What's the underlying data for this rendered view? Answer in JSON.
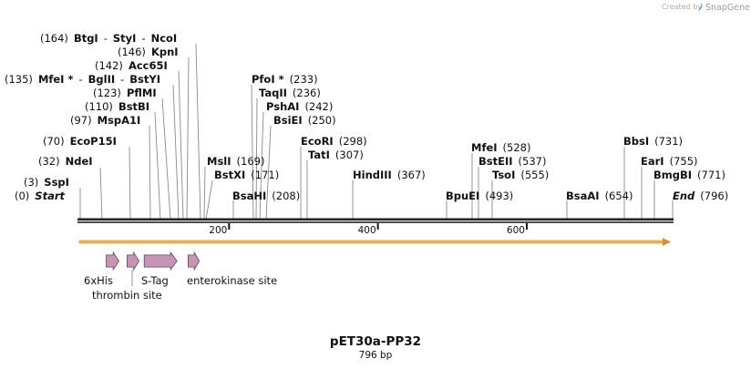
{
  "credit": {
    "prefix": "Created by",
    "brand": "SnapGene"
  },
  "plasmid": {
    "name": "pET30a-PP32",
    "length_label": "796 bp",
    "length": 796
  },
  "ruler": {
    "ticks": [
      {
        "label": "200",
        "pos": 200
      },
      {
        "label": "400",
        "pos": 400
      },
      {
        "label": "600",
        "pos": 600
      }
    ]
  },
  "site_groups": [
    {
      "text": [
        {
          "pos": "(164)"
        },
        {
          "enz": "BtgI"
        },
        {
          "sep": "-"
        },
        {
          "enz": "StyI"
        },
        {
          "sep": "-"
        },
        {
          "enz": "NcoI"
        }
      ]
    },
    {
      "text": [
        {
          "pos": "(146)"
        },
        {
          "enz": "KpnI"
        }
      ]
    },
    {
      "text": [
        {
          "pos": "(142)"
        },
        {
          "enz": "Acc65I"
        }
      ]
    },
    {
      "text": [
        {
          "pos": "(135)"
        },
        {
          "enz": "MfeI *"
        },
        {
          "sep": "-"
        },
        {
          "enz": "BglII"
        },
        {
          "sep": "-"
        },
        {
          "enz": "BstYI"
        }
      ]
    },
    {
      "text": [
        {
          "pos": "(123)"
        },
        {
          "enz": "PflMI"
        }
      ]
    },
    {
      "text": [
        {
          "pos": "(110)"
        },
        {
          "enz": "BstBI"
        }
      ]
    },
    {
      "text": [
        {
          "pos": "(97)"
        },
        {
          "enz": "MspA1I"
        }
      ]
    },
    {
      "text": [
        {
          "pos": "(70)"
        },
        {
          "enz": "EcoP15I"
        }
      ]
    },
    {
      "text": [
        {
          "pos": "(32)"
        },
        {
          "enz": "NdeI"
        }
      ]
    },
    {
      "text": [
        {
          "pos": "(3)"
        },
        {
          "enz": "SspI"
        }
      ]
    },
    {
      "text": [
        {
          "pos": "(0)"
        },
        {
          "ital": "Start"
        }
      ]
    },
    {
      "text": [
        {
          "enz": "PfoI *"
        },
        {
          "pos": "(233)"
        }
      ]
    },
    {
      "text": [
        {
          "enz": "TaqII"
        },
        {
          "pos": "(236)"
        }
      ]
    },
    {
      "text": [
        {
          "enz": "PshAI"
        },
        {
          "pos": "(242)"
        }
      ]
    },
    {
      "text": [
        {
          "enz": "BsiEI"
        },
        {
          "pos": "(250)"
        }
      ]
    },
    {
      "text": [
        {
          "enz": "MslI"
        },
        {
          "pos": "(169)"
        }
      ]
    },
    {
      "text": [
        {
          "enz": "BstXI"
        },
        {
          "pos": "(171)"
        }
      ]
    },
    {
      "text": [
        {
          "enz": "BsaHI"
        },
        {
          "pos": "(208)"
        }
      ]
    },
    {
      "text": [
        {
          "enz": "EcoRI"
        },
        {
          "pos": "(298)"
        }
      ]
    },
    {
      "text": [
        {
          "enz": "TatI"
        },
        {
          "pos": "(307)"
        }
      ]
    },
    {
      "text": [
        {
          "enz": "HindIII"
        },
        {
          "pos": "(367)"
        }
      ]
    },
    {
      "text": [
        {
          "enz": "MfeI"
        },
        {
          "pos": "(528)"
        }
      ]
    },
    {
      "text": [
        {
          "enz": "BstEII"
        },
        {
          "pos": "(537)"
        }
      ]
    },
    {
      "text": [
        {
          "enz": "TsoI"
        },
        {
          "pos": "(555)"
        }
      ]
    },
    {
      "text": [
        {
          "enz": "BpuEI"
        },
        {
          "pos": "(493)"
        }
      ]
    },
    {
      "text": [
        {
          "enz": "BsaAI"
        },
        {
          "pos": "(654)"
        }
      ]
    },
    {
      "text": [
        {
          "enz": "BbsI"
        },
        {
          "pos": "(731)"
        }
      ]
    },
    {
      "text": [
        {
          "enz": "EarI"
        },
        {
          "pos": "(755)"
        }
      ]
    },
    {
      "text": [
        {
          "enz": "BmgBI"
        },
        {
          "pos": "(771)"
        }
      ]
    },
    {
      "text": [
        {
          "ital": "End"
        },
        {
          "pos": "(796)"
        }
      ]
    }
  ],
  "features": [
    {
      "name": "6xHis",
      "start": 35,
      "end": 52
    },
    {
      "name": "thrombin site",
      "start": 63,
      "end": 79
    },
    {
      "name": "S-Tag",
      "start": 86,
      "end": 130
    },
    {
      "name": "enterokinase site",
      "start": 145,
      "end": 160
    }
  ],
  "colors": {
    "feature_fill": "#c993b4",
    "orf": "#e8a33a",
    "backbone": "#222222"
  }
}
